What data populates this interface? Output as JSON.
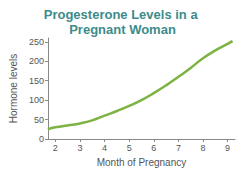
{
  "chart_data": {
    "type": "line",
    "title": "Progesterone Levels in a Pregnant Woman",
    "x_label": "Month of Pregnancy",
    "y_label": "Hormone levels",
    "x": [
      1.7,
      2,
      2.5,
      3,
      3.5,
      4,
      4.5,
      5,
      5.5,
      6,
      6.5,
      7,
      7.5,
      8,
      8.5,
      9,
      9.2
    ],
    "values": [
      25,
      30,
      35,
      40,
      48,
      60,
      72,
      85,
      100,
      118,
      138,
      160,
      183,
      208,
      228,
      245,
      252
    ],
    "color": "#7cb342",
    "xlim": [
      1.7,
      9.3
    ],
    "xticks": [
      2,
      3,
      4,
      5,
      6,
      7,
      8,
      9
    ],
    "ylim": [
      0,
      260
    ],
    "yticks": [
      0,
      50,
      100,
      150,
      200,
      250
    ],
    "grid": false
  }
}
